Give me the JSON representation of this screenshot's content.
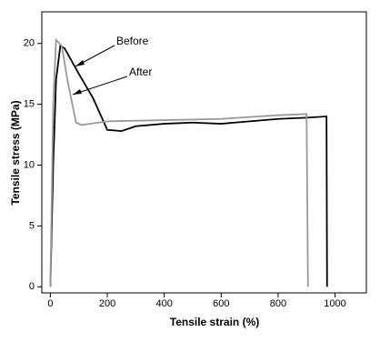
{
  "chart_data": {
    "type": "line",
    "xlabel": "Tensile strain (%)",
    "ylabel": "Tensile stress (MPa)",
    "annotations": [
      "Before",
      "After"
    ],
    "xlim": [
      -30,
      1110
    ],
    "ylim": [
      -0.5,
      22.6
    ],
    "xticks": [
      0,
      200,
      400,
      600,
      800,
      1000
    ],
    "yticks": [
      0,
      5,
      10,
      15,
      20
    ],
    "series": [
      {
        "name": "Before",
        "color": "#000000",
        "x": [
          0,
          10,
          20,
          35,
          50,
          100,
          150,
          200,
          250,
          300,
          400,
          500,
          600,
          700,
          800,
          900,
          970,
          972
        ],
        "values": [
          0,
          10,
          17,
          19.8,
          19.6,
          17.5,
          15.5,
          12.9,
          12.8,
          13.2,
          13.4,
          13.5,
          13.4,
          13.6,
          13.8,
          13.9,
          14,
          0
        ]
      },
      {
        "name": "After",
        "color": "#999999",
        "x": [
          0,
          10,
          20,
          40,
          60,
          90,
          110,
          200,
          400,
          600,
          800,
          900,
          905
        ],
        "values": [
          0,
          15,
          20.3,
          19.8,
          17,
          13.5,
          13.3,
          13.6,
          13.7,
          13.8,
          14.1,
          14.2,
          0
        ]
      }
    ]
  }
}
